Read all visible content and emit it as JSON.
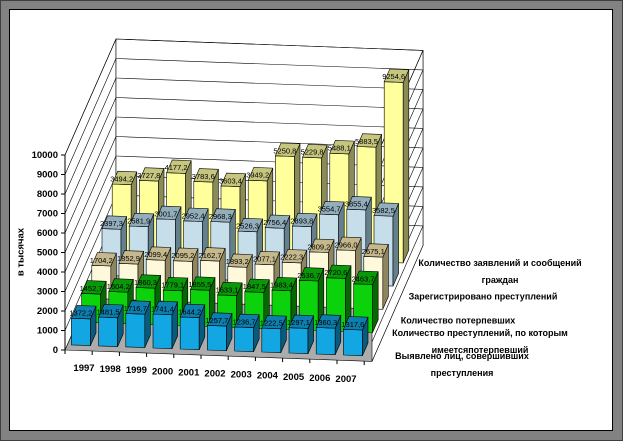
{
  "frame": {
    "outer_bg": "#828282",
    "edge_color": "#3F3F3F",
    "panel_bg": "#FFFFFF",
    "panel_border": "#000000",
    "wall_color": "#FFFFFF",
    "floor_color": "#ACACAC",
    "gridline_color": "#000000",
    "label_color": "#000000"
  },
  "chart_data": {
    "type": "bar",
    "projection": "3d-depth-series",
    "title": "",
    "value_axis": {
      "label": "в тысячах",
      "min": 0,
      "max": 10000,
      "step": 1000
    },
    "years": [
      "1997",
      "1998",
      "1999",
      "2000",
      "2001",
      "2002",
      "2003",
      "2004",
      "2005",
      "2006",
      "2007"
    ],
    "series_depth_order": "first listed series is the back row",
    "series": [
      {
        "name": "Количество заявлений и сообщений граждан",
        "label_lines": [
          "Количество заявлений и сообщений",
          "граждан"
        ],
        "colors": {
          "front": "#FFFF9C",
          "top": "#C6C67E",
          "side": "#8B8B55"
        },
        "values": [
          3494.2,
          3727.8,
          4177.2,
          3783.6,
          3603.4,
          3949.2,
          5250.8,
          5229.8,
          5488.1,
          5883.5,
          9254.6
        ]
      },
      {
        "name": "Зарегистрировано преступлений",
        "label_lines": [
          "Зарегистрировано преступлений"
        ],
        "colors": {
          "front": "#C5DEE9",
          "top": "#92AEBC",
          "side": "#64808D"
        },
        "values": [
          2397.3,
          2581.9,
          3001.7,
          2952.4,
          2968.3,
          2526.3,
          2756.4,
          2893.8,
          3554.7,
          3855.4,
          3582.5
        ]
      },
      {
        "name": "Количество потерпевших",
        "label_lines": [
          "Количество потерпевших"
        ],
        "colors": {
          "front": "#FFF9DC",
          "top": "#C4B88C",
          "side": "#8F855E"
        },
        "values": [
          1704.2,
          1852.9,
          2099.4,
          2095.2,
          2162.7,
          1893.2,
          2077.1,
          2222.3,
          2809.2,
          2966.0,
          2675.1
        ]
      },
      {
        "name": "Количество преступлений, по которым имеется потерпевший",
        "label_lines": [
          "Количество преступлений, по которым",
          "имеетсяпотерпевший"
        ],
        "colors": {
          "front": "#0BD20B",
          "top": "#089808",
          "side": "#056805"
        },
        "values": [
          1452.7,
          1604.2,
          1860.3,
          1779.1,
          1855.5,
          1633.1,
          1847.5,
          1983.4,
          2536.7,
          2720.6,
          2463.7
        ]
      },
      {
        "name": "Выявлено лиц, совершивших преступления",
        "label_lines": [
          "Выявлено лиц, совершивших",
          "преступления"
        ],
        "colors": {
          "front": "#12A7E2",
          "top": "#0C7FAE",
          "side": "#085B7D"
        },
        "values": [
          1372.2,
          1481.5,
          1716.7,
          1741.4,
          1644.2,
          1257.7,
          1236.7,
          1222.5,
          1297.1,
          1360.3,
          1317.6
        ]
      }
    ]
  }
}
